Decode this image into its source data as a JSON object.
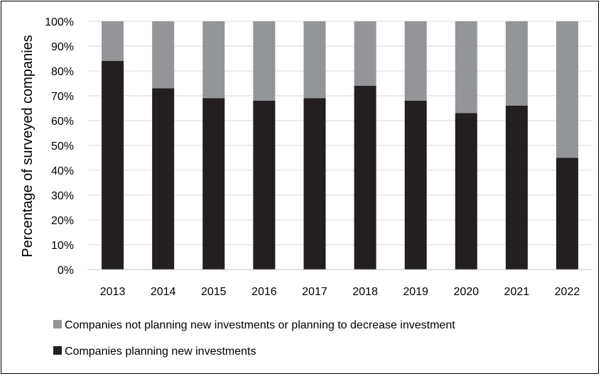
{
  "chart_data": {
    "type": "bar",
    "stacked": true,
    "orientation": "vertical",
    "categories": [
      "2013",
      "2014",
      "2015",
      "2016",
      "2017",
      "2018",
      "2019",
      "2020",
      "2021",
      "2022"
    ],
    "series": [
      {
        "name": "Companies planning new investments",
        "color": "#231f20",
        "values": [
          84,
          73,
          69,
          68,
          69,
          74,
          68,
          63,
          66,
          45
        ]
      },
      {
        "name": "Companies not planning new investments or planning to decrease investment",
        "color": "#939598",
        "values": [
          16,
          27,
          31,
          32,
          31,
          26,
          32,
          37,
          34,
          55
        ]
      }
    ],
    "title": "",
    "xlabel": "",
    "ylabel": "Percentage of surveyed companies",
    "ylim": [
      0,
      100
    ],
    "yticks": [
      "0%",
      "10%",
      "20%",
      "30%",
      "40%",
      "50%",
      "60%",
      "70%",
      "80%",
      "90%",
      "100%"
    ],
    "grid": true,
    "legend_position": "bottom",
    "legend_order": [
      1,
      0
    ]
  }
}
